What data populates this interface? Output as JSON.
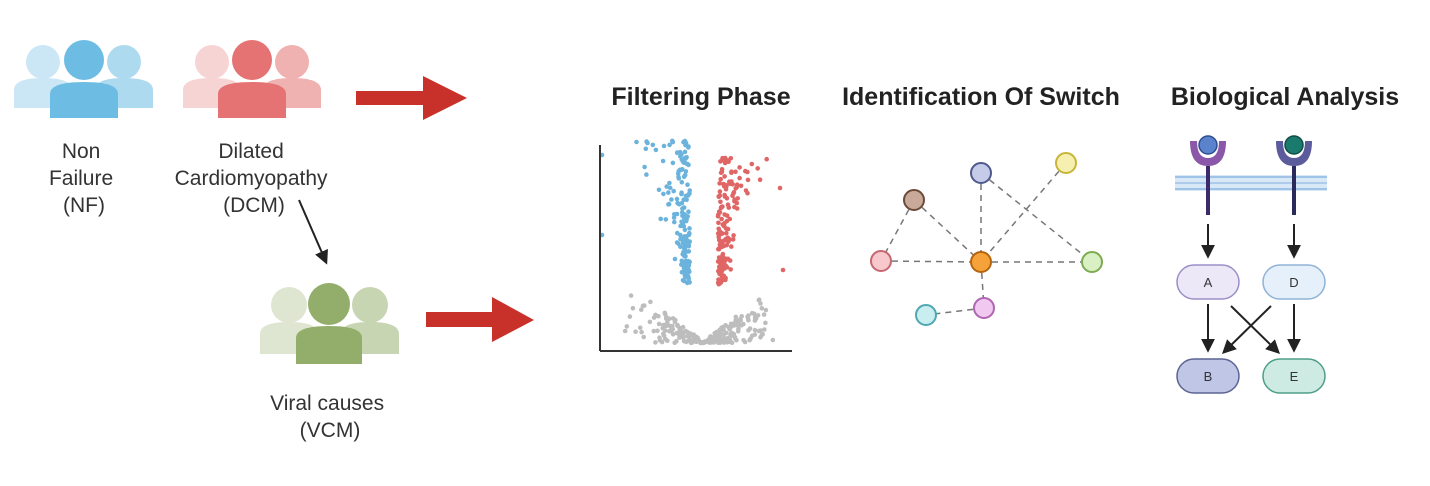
{
  "groups": [
    {
      "id": "nf",
      "label_lines": [
        "Non",
        "Failure",
        "(NF)"
      ],
      "color": "#6dbce3"
    },
    {
      "id": "dcm",
      "label_lines": [
        "Dilated",
        "Cardiomyopathy",
        "(DCM)"
      ],
      "color": "#e57373"
    },
    {
      "id": "vcm",
      "label_lines": [
        "Viral causes",
        "(VCM)"
      ],
      "color": "#93ad6a"
    }
  ],
  "sections": {
    "filtering": "Filtering Phase",
    "identification": "Identification Of Switch",
    "biological": "Biological Analysis"
  },
  "network_nodes": [
    {
      "id": "brown",
      "color": "#c9a99a"
    },
    {
      "id": "navy",
      "color": "#c5cbe8"
    },
    {
      "id": "yellow",
      "color": "#f5f0b0"
    },
    {
      "id": "pink",
      "color": "#f7c9cc"
    },
    {
      "id": "orange",
      "color": "#f6a23a"
    },
    {
      "id": "green",
      "color": "#d9efc4"
    },
    {
      "id": "purple",
      "color": "#f0c8f0"
    },
    {
      "id": "cyan",
      "color": "#c9eef0"
    }
  ],
  "pathway": {
    "nodes": [
      {
        "id": "A",
        "label": "A",
        "color": "#ece8f8"
      },
      {
        "id": "D",
        "label": "D",
        "color": "#e6f0fa"
      },
      {
        "id": "B",
        "label": "B",
        "color": "#bfc6e6"
      },
      {
        "id": "E",
        "label": "E",
        "color": "#cdebe3"
      }
    ],
    "receptor_colors": [
      "#5b82cc",
      "#1b7a6e"
    ]
  },
  "colors": {
    "arrow_red": "#c8302a",
    "volcano_blue": "#6bb3dc",
    "volcano_red": "#e06666",
    "volcano_grey": "#bdbdbd"
  }
}
